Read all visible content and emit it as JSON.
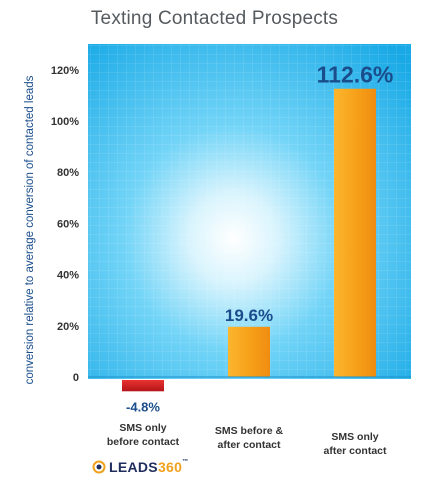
{
  "chart_data": {
    "type": "bar",
    "title": "Texting Contacted Prospects",
    "ylabel": "conversion relative to average conversion of contacted leads",
    "xlabel": "",
    "categories": [
      "SMS only\nbefore contact",
      "SMS before &\nafter contact",
      "SMS only\nafter contact"
    ],
    "values": [
      -4.8,
      19.6,
      112.6
    ],
    "data_labels": [
      "-4.8%",
      "19.6%",
      "112.6%"
    ],
    "yticks": [
      "0",
      "20%",
      "40%",
      "60%",
      "80%",
      "100%",
      "120%"
    ],
    "ytick_values": [
      0,
      20,
      40,
      60,
      80,
      100,
      120
    ],
    "ylim": [
      -10,
      130
    ],
    "grid": true,
    "colors": {
      "negative": "#d31f25",
      "positive": "#f7a21b",
      "background": "#29b8ee",
      "label": "#1a4d8c"
    }
  },
  "logo": {
    "name": "LEADS",
    "number": "360",
    "trademark": "™"
  }
}
